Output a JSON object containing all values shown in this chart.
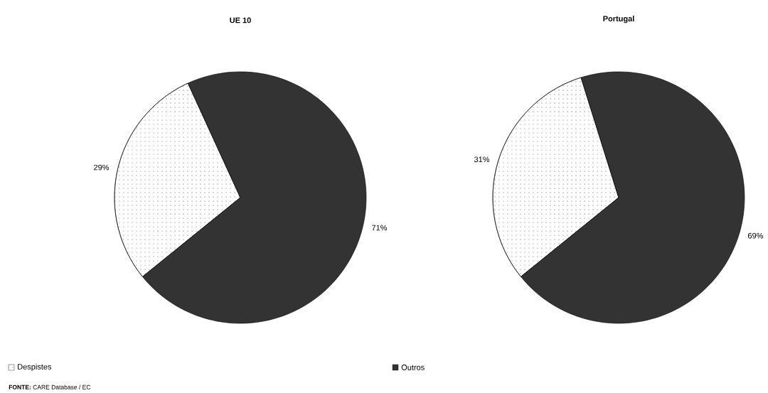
{
  "chart_data": [
    {
      "type": "pie",
      "title": "UE 10",
      "categories": [
        "Despistes",
        "Outros"
      ],
      "values": [
        29,
        71
      ],
      "colors": [
        "#ffffff",
        "#333333"
      ],
      "value_labels": [
        "29%",
        "71%"
      ],
      "legend": "bottom",
      "annotations": [
        "**FONTE:** CARE Database / EC"
      ]
    },
    {
      "type": "pie",
      "title": "Portugal",
      "categories": [
        null,
        null
      ],
      "values": [
        31,
        69
      ],
      "colors": [
        "#ffffff",
        "#333333"
      ],
      "value_labels": [
        "31%",
        "69%"
      ]
    }
  ]
}
